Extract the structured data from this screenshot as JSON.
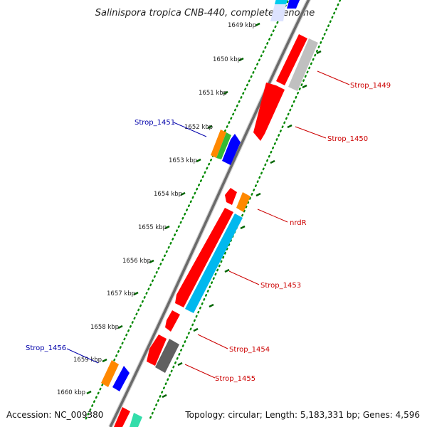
{
  "title": "Salinispora tropica CNB-440, complete genome",
  "footer": {
    "accession": "Accession: NC_009380",
    "topology": "Topology: circular; Length: 5,183,331 bp; Genes: 4,596"
  },
  "ticks": [
    "1649 kbp",
    "1650 kbp",
    "1651 kbp",
    "1652 kbp",
    "1653 kbp",
    "1654 kbp",
    "1655 kbp",
    "1656 kbp",
    "1657 kbp",
    "1658 kbp",
    "1659 kbp",
    "1660 kbp"
  ],
  "gene_labels": [
    {
      "text": "Strop_1449",
      "color": "#cc0000"
    },
    {
      "text": "Strop_1450",
      "color": "#cc0000"
    },
    {
      "text": "Strop_1451",
      "color": "#0000aa"
    },
    {
      "text": "nrdR",
      "color": "#cc0000"
    },
    {
      "text": "Strop_1453",
      "color": "#cc0000"
    },
    {
      "text": "Strop_1454",
      "color": "#cc0000"
    },
    {
      "text": "Strop_1455",
      "color": "#cc0000"
    },
    {
      "text": "Strop_1456",
      "color": "#0000aa"
    }
  ],
  "colors": {
    "forward_cds": "#ff0000",
    "cyan_feature": "#00b0e8",
    "gray_feature": "#c0c0c0",
    "dark_gray_feature": "#606060",
    "orange_feature": "#ff8800",
    "green_feature": "#33bb33",
    "blue_feature": "#0000ff",
    "backbone": "#777777",
    "tick_dots": "#008800"
  }
}
